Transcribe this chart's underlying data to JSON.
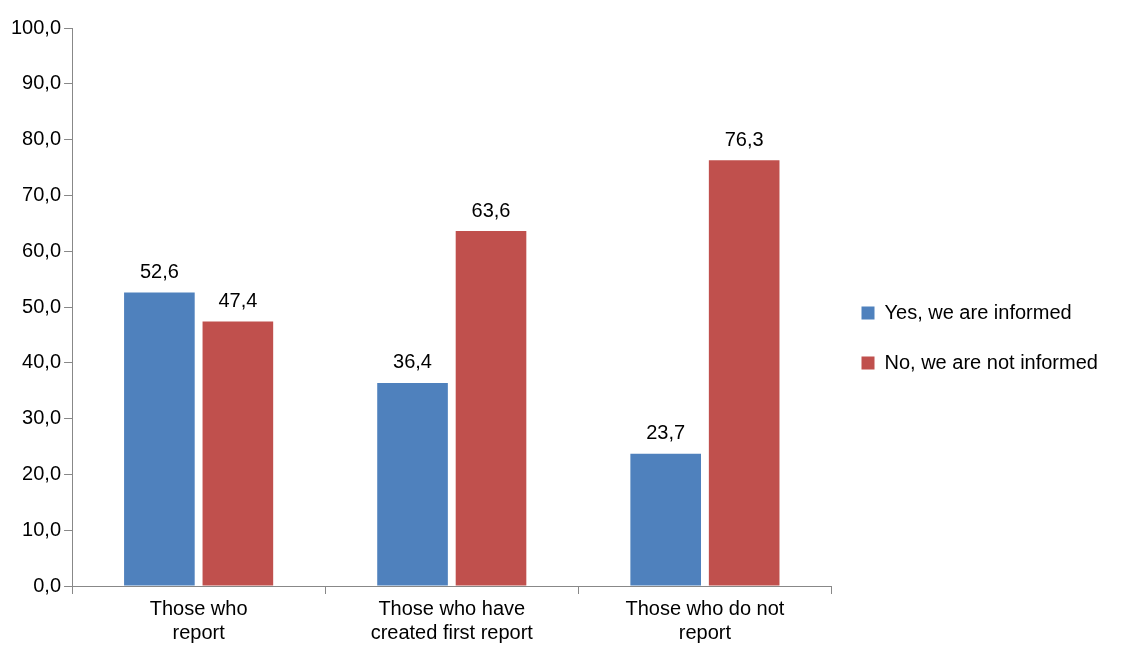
{
  "chart_data": {
    "type": "bar",
    "categories": [
      "Those who\nreport",
      "Those who have\ncreated first report",
      "Those who do not\nreport"
    ],
    "series": [
      {
        "name": "Yes, we are informed",
        "color": "#4f81bd",
        "values": [
          52.6,
          36.4,
          23.7
        ],
        "value_labels": [
          "52,6",
          "36,4",
          "23,7"
        ]
      },
      {
        "name": "No, we are not informed",
        "color": "#c0504d",
        "values": [
          47.4,
          63.6,
          76.3
        ],
        "value_labels": [
          "47,4",
          "63,6",
          "76,3"
        ]
      }
    ],
    "ylim": [
      0,
      100
    ],
    "yticks": [
      {
        "value": 0,
        "label": "0,0"
      },
      {
        "value": 10,
        "label": "10,0"
      },
      {
        "value": 20,
        "label": "20,0"
      },
      {
        "value": 30,
        "label": "30,0"
      },
      {
        "value": 40,
        "label": "40,0"
      },
      {
        "value": 50,
        "label": "50,0"
      },
      {
        "value": 60,
        "label": "60,0"
      },
      {
        "value": 70,
        "label": "70,0"
      },
      {
        "value": 80,
        "label": "80,0"
      },
      {
        "value": 90,
        "label": "90,0"
      },
      {
        "value": 100,
        "label": "100,0"
      }
    ],
    "grid": false,
    "legend": "right"
  }
}
